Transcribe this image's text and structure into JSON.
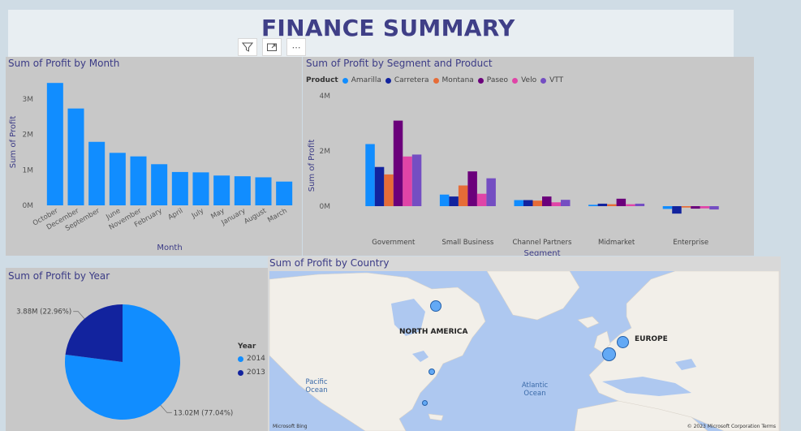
{
  "header": {
    "title": "FINANCE SUMMARY"
  },
  "visual_header": {
    "icons": [
      "filter-icon",
      "focus-mode-icon",
      "more-options-icon"
    ],
    "more_glyph": "⋯"
  },
  "month_chart": {
    "title": "Sum of Profit by Month",
    "chart_data": {
      "type": "bar",
      "title": "Sum of Profit by Month",
      "xlabel": "Month",
      "ylabel": "Sum of Profit",
      "categories": [
        "October",
        "December",
        "September",
        "June",
        "November",
        "February",
        "April",
        "July",
        "May",
        "January",
        "August",
        "March"
      ],
      "values": [
        3.45,
        2.73,
        1.79,
        1.48,
        1.38,
        1.16,
        0.94,
        0.93,
        0.84,
        0.82,
        0.79,
        0.67
      ],
      "yticks": [
        "0M",
        "1M",
        "2M",
        "3M"
      ],
      "ylim": [
        0,
        3.5
      ],
      "units": "M",
      "color": "#118dff"
    }
  },
  "segment_chart": {
    "title": "Sum of Profit by Segment and Product",
    "legend_title": "Product",
    "chart_data": {
      "type": "bar",
      "title": "Sum of Profit by Segment and Product",
      "xlabel": "Segment",
      "ylabel": "Sum of Profit",
      "categories": [
        "Government",
        "Small Business",
        "Channel Partners",
        "Midmarket",
        "Enterprise"
      ],
      "yticks": [
        "0M",
        "2M",
        "4M"
      ],
      "ylim": [
        -0.3,
        4
      ],
      "units": "M",
      "legend_position": "top-left",
      "series": [
        {
          "name": "Amarilla",
          "color": "#118dff",
          "values": [
            2.25,
            0.42,
            0.22,
            0.05,
            -0.1
          ]
        },
        {
          "name": "Carretera",
          "color": "#12239e",
          "values": [
            1.42,
            0.35,
            0.22,
            0.09,
            -0.27
          ]
        },
        {
          "name": "Montana",
          "color": "#e66c37",
          "values": [
            1.15,
            0.75,
            0.2,
            0.07,
            -0.05
          ]
        },
        {
          "name": "Paseo",
          "color": "#6b007b",
          "values": [
            3.1,
            1.26,
            0.35,
            0.27,
            -0.09
          ]
        },
        {
          "name": "Velo",
          "color": "#e044a7",
          "values": [
            1.8,
            0.45,
            0.14,
            0.07,
            -0.08
          ]
        },
        {
          "name": "VTT",
          "color": "#744ec2",
          "values": [
            1.87,
            1.01,
            0.23,
            0.09,
            -0.12
          ]
        }
      ]
    }
  },
  "year_chart": {
    "title": "Sum of Profit by Year",
    "legend_title": "Year",
    "chart_data": {
      "type": "pie",
      "title": "Sum of Profit by Year",
      "slices": [
        {
          "name": "2014",
          "value": 13.02,
          "percent": 77.04,
          "label": "13.02M (77.04%)",
          "color": "#118dff"
        },
        {
          "name": "2013",
          "value": 3.88,
          "percent": 22.96,
          "label": "3.88M (22.96%)",
          "color": "#12239e"
        }
      ],
      "legend_position": "right"
    }
  },
  "country_map": {
    "title": "Sum of Profit by Country",
    "labels": {
      "north_america": "NORTH AMERICA",
      "europe": "EUROPE",
      "pacific": "Pacific\nOcean",
      "atlantic": "Atlantic\nOcean"
    },
    "attribution_left": "Microsoft Bing",
    "attribution_right": "© 2023 Microsoft Corporation  Terms"
  }
}
